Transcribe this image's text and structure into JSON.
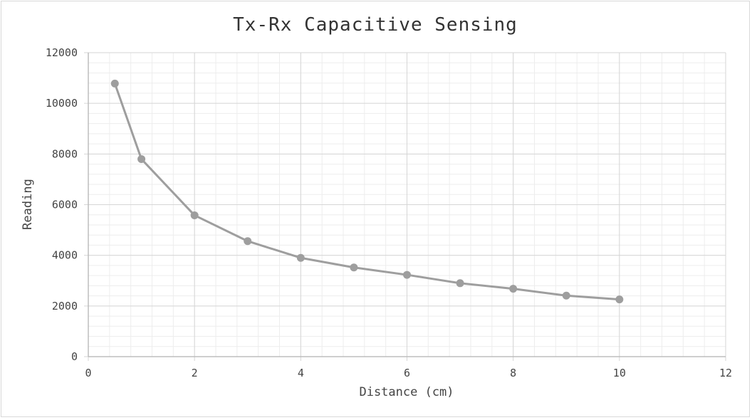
{
  "chart_data": {
    "type": "scatter",
    "title": "Tx-Rx Capacitive Sensing",
    "xlabel": "Distance (cm)",
    "ylabel": "Reading",
    "xlim": [
      0,
      12
    ],
    "ylim": [
      0,
      12000
    ],
    "x_major_step": 2,
    "x_minor_step": 0.4,
    "y_major_step": 2000,
    "y_minor_step": 400,
    "x_ticks": [
      "0",
      "2",
      "4",
      "6",
      "8",
      "10",
      "12"
    ],
    "y_ticks": [
      "0",
      "2000",
      "4000",
      "6000",
      "8000",
      "10000",
      "12000"
    ],
    "grid": true,
    "legend": "none",
    "series": [
      {
        "color": "#9e9e9e",
        "line": true,
        "markers": true,
        "x": [
          0.5,
          1,
          2,
          3,
          4,
          5,
          6,
          7,
          8,
          9,
          10
        ],
        "y": [
          10780,
          7800,
          5580,
          4560,
          3900,
          3520,
          3230,
          2900,
          2680,
          2410,
          2260
        ]
      }
    ]
  }
}
